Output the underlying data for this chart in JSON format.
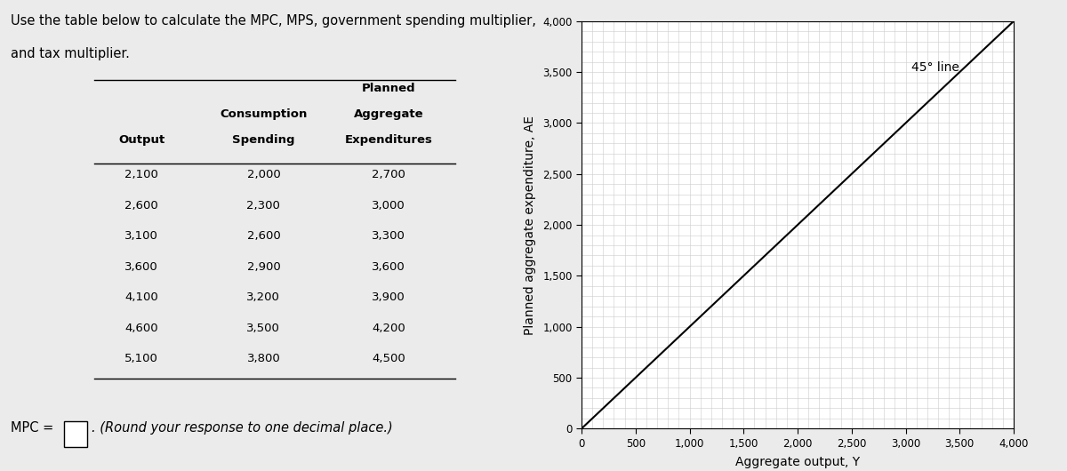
{
  "title_line1": "Use the table below to calculate the MPC, MPS, government spending multiplier,",
  "title_line2": "and tax multiplier.",
  "table_col1": [
    2100,
    2600,
    3100,
    3600,
    4100,
    4600,
    5100
  ],
  "table_col2": [
    2000,
    2300,
    2600,
    2900,
    3200,
    3500,
    3800
  ],
  "table_col3": [
    2700,
    3000,
    3300,
    3600,
    3900,
    4200,
    4500
  ],
  "mpc_label": "MPC =",
  "mpc_note": "(Round your response to one decimal place.)",
  "chart_xlabel": "Aggregate output, Y",
  "chart_ylabel": "Planned aggregate expenditure, AE",
  "chart_xlim": [
    0,
    4000
  ],
  "chart_ylim": [
    0,
    4000
  ],
  "chart_xticks": [
    0,
    500,
    1000,
    1500,
    2000,
    2500,
    3000,
    3500,
    4000
  ],
  "chart_yticks": [
    0,
    500,
    1000,
    1500,
    2000,
    2500,
    3000,
    3500,
    4000
  ],
  "line_45_label": "45° line",
  "line_color": "#000000",
  "grid_color": "#cccccc",
  "bg_color": "#ffffff",
  "fig_bg_color": "#ebebeb"
}
